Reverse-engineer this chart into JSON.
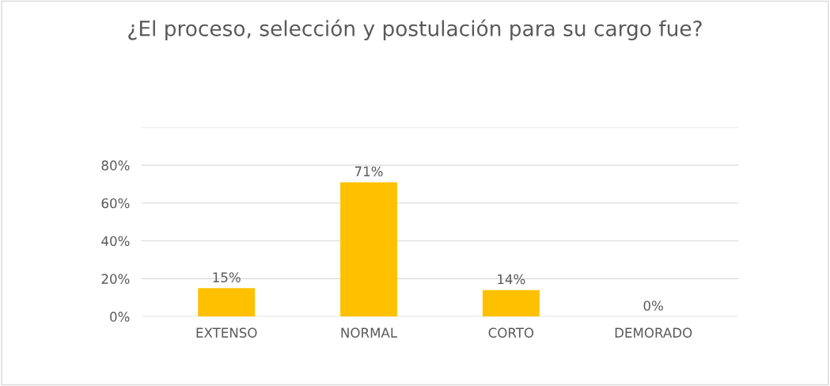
{
  "chart_data": {
    "type": "bar",
    "title": "¿El proceso, selección y postulación para su cargo fue?",
    "categories": [
      "EXTENSO",
      "NORMAL",
      "CORTO",
      "DEMORADO"
    ],
    "values": [
      15,
      71,
      14,
      0
    ],
    "value_labels": [
      "15%",
      "71%",
      "14%",
      "0%"
    ],
    "color": "#ffc000",
    "ylim": [
      0,
      100
    ],
    "yticks": [
      {
        "value": 0,
        "label": "0%"
      },
      {
        "value": 20,
        "label": "20%"
      },
      {
        "value": 40,
        "label": "40%"
      },
      {
        "value": 60,
        "label": "60%"
      },
      {
        "value": 80,
        "label": "80%"
      },
      {
        "value": 100,
        "label": null
      }
    ],
    "grid": "y",
    "legend": false
  }
}
